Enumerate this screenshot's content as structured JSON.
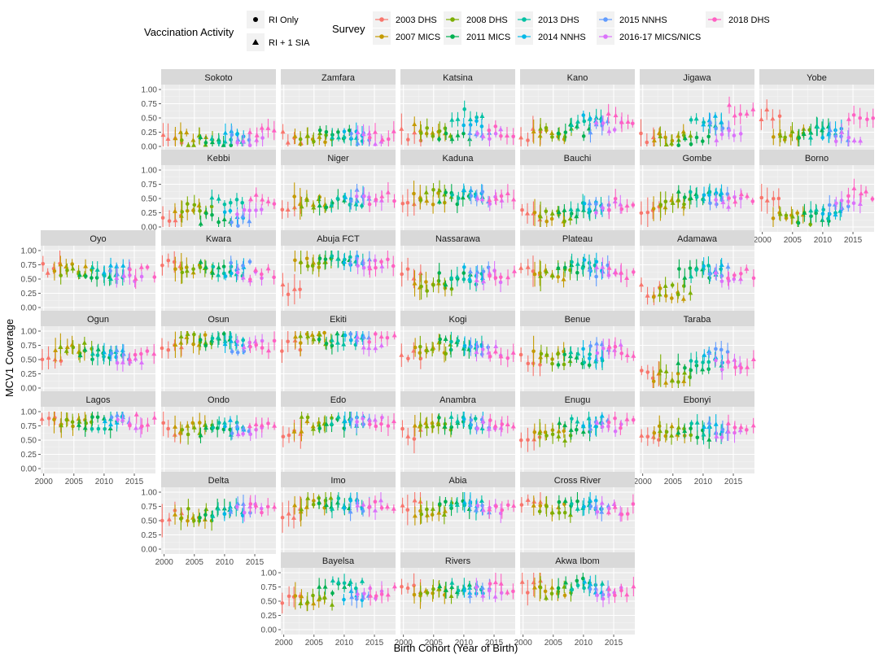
{
  "chart_data": {
    "type": "scatter",
    "subtype": "faceted point-range (map-layout small multiples)",
    "x_label": "Birth Cohort (Year of Birth)",
    "y_label": "MCV1 Coverage",
    "xlim": [
      1999.5,
      2018.5
    ],
    "ylim": [
      0,
      1
    ],
    "x_ticks": [
      2000,
      2005,
      2010,
      2015
    ],
    "y_ticks": [
      0,
      0.25,
      0.5,
      0.75,
      1
    ],
    "y_tick_labels": [
      "0.00",
      "0.25",
      "0.50",
      "0.75",
      "1.00"
    ],
    "legend": {
      "shape_title": "Vaccination Activity",
      "shape_items": [
        {
          "label": "RI Only",
          "shape": "circle"
        },
        {
          "label": "RI + 1 SIA",
          "shape": "triangle"
        }
      ],
      "color_title": "Survey",
      "color_items": [
        {
          "label": "2003 DHS",
          "color": "#F8766D"
        },
        {
          "label": "2007 MICS",
          "color": "#C49A00"
        },
        {
          "label": "2008 DHS",
          "color": "#7CAE00"
        },
        {
          "label": "2011 MICS",
          "color": "#00B050"
        },
        {
          "label": "2013 DHS",
          "color": "#00C1A3"
        },
        {
          "label": "2014 NNHS",
          "color": "#00B8E7"
        },
        {
          "label": "2015 NNHS",
          "color": "#619CFF"
        },
        {
          "label": "2016-17 MICS/NICS",
          "color": "#DB72FB"
        },
        {
          "label": "2018 DHS",
          "color": "#FF61C3"
        }
      ]
    },
    "surveys": [
      {
        "name": "2003 DHS",
        "years": [
          2000,
          2003
        ]
      },
      {
        "name": "2007 MICS",
        "years": [
          2002,
          2007
        ]
      },
      {
        "name": "2008 DHS",
        "years": [
          2003,
          2008
        ]
      },
      {
        "name": "2011 MICS",
        "years": [
          2006,
          2011
        ]
      },
      {
        "name": "2013 DHS",
        "years": [
          2008,
          2013
        ]
      },
      {
        "name": "2014 NNHS",
        "years": [
          2010,
          2013
        ]
      },
      {
        "name": "2015 NNHS",
        "years": [
          2011,
          2014
        ]
      },
      {
        "name": "2016-17 MICS/NICS",
        "years": [
          2012,
          2016
        ]
      },
      {
        "name": "2018 DHS",
        "years": [
          2014,
          2018
        ]
      }
    ],
    "states": [
      {
        "name": "Sokoto",
        "row": 0,
        "col": 1,
        "levels": [
          0.15,
          0.15,
          0.08,
          0.05,
          0.15,
          0.25,
          0.1,
          0.08,
          0.22
        ]
      },
      {
        "name": "Zamfara",
        "row": 0,
        "col": 2,
        "levels": [
          0.15,
          0.15,
          0.18,
          0.18,
          0.12,
          0.25,
          0.15,
          0.15,
          0.2
        ]
      },
      {
        "name": "Katsina",
        "row": 0,
        "col": 3,
        "levels": [
          0.2,
          0.3,
          0.25,
          0.2,
          0.55,
          0.45,
          0.2,
          0.2,
          0.25
        ]
      },
      {
        "name": "Kano",
        "row": 0,
        "col": 4,
        "levels": [
          0.2,
          0.2,
          0.22,
          0.28,
          0.45,
          0.45,
          0.35,
          0.35,
          0.5
        ]
      },
      {
        "name": "Jigawa",
        "row": 0,
        "col": 5,
        "levels": [
          0.15,
          0.15,
          0.12,
          0.1,
          0.45,
          0.45,
          0.3,
          0.2,
          0.65
        ]
      },
      {
        "name": "Yobe",
        "row": 0,
        "col": 6,
        "levels": [
          0.55,
          0.2,
          0.2,
          0.25,
          0.25,
          0.25,
          0.2,
          0.15,
          0.45
        ]
      },
      {
        "name": "Kebbi",
        "row": 1,
        "col": 1,
        "levels": [
          0.2,
          0.3,
          0.3,
          0.15,
          0.5,
          0.2,
          0.1,
          0.2,
          0.5
        ]
      },
      {
        "name": "Niger",
        "row": 1,
        "col": 2,
        "levels": [
          0.3,
          0.45,
          0.4,
          0.45,
          0.45,
          0.5,
          0.55,
          0.45,
          0.5
        ]
      },
      {
        "name": "Kaduna",
        "row": 1,
        "col": 3,
        "levels": [
          0.4,
          0.5,
          0.55,
          0.5,
          0.6,
          0.55,
          0.55,
          0.45,
          0.55
        ]
      },
      {
        "name": "Bauchi",
        "row": 1,
        "col": 4,
        "levels": [
          0.2,
          0.15,
          0.2,
          0.25,
          0.35,
          0.4,
          0.35,
          0.35,
          0.4
        ]
      },
      {
        "name": "Gombe",
        "row": 1,
        "col": 5,
        "levels": [
          0.35,
          0.4,
          0.4,
          0.55,
          0.55,
          0.55,
          0.5,
          0.45,
          0.55
        ]
      },
      {
        "name": "Borno",
        "row": 1,
        "col": 6,
        "levels": [
          0.55,
          0.2,
          0.15,
          0.15,
          0.25,
          0.3,
          0.3,
          0.5,
          0.6
        ]
      },
      {
        "name": "Oyo",
        "row": 2,
        "col": 0,
        "levels": [
          0.7,
          0.7,
          0.65,
          0.6,
          0.6,
          0.65,
          0.6,
          0.55,
          0.6
        ]
      },
      {
        "name": "Kwara",
        "row": 2,
        "col": 1,
        "levels": [
          0.8,
          0.7,
          0.6,
          0.7,
          0.65,
          0.6,
          0.7,
          0.55,
          0.6
        ]
      },
      {
        "name": "Abuja FCT",
        "row": 2,
        "col": 2,
        "levels": [
          0.3,
          0.75,
          0.8,
          0.8,
          0.85,
          0.85,
          0.8,
          0.75,
          0.75
        ]
      },
      {
        "name": "Nassarawa",
        "row": 2,
        "col": 3,
        "levels": [
          0.6,
          0.45,
          0.4,
          0.5,
          0.5,
          0.6,
          0.6,
          0.55,
          0.55
        ]
      },
      {
        "name": "Plateau",
        "row": 2,
        "col": 4,
        "levels": [
          0.6,
          0.55,
          0.6,
          0.65,
          0.7,
          0.75,
          0.65,
          0.6,
          0.6
        ]
      },
      {
        "name": "Adamawa",
        "row": 2,
        "col": 5,
        "levels": [
          0.3,
          0.25,
          0.3,
          0.6,
          0.65,
          0.7,
          0.65,
          0.5,
          0.6
        ]
      },
      {
        "name": "Ogun",
        "row": 3,
        "col": 0,
        "levels": [
          0.5,
          0.65,
          0.7,
          0.6,
          0.6,
          0.6,
          0.6,
          0.55,
          0.6
        ]
      },
      {
        "name": "Osun",
        "row": 3,
        "col": 1,
        "levels": [
          0.7,
          0.85,
          0.85,
          0.85,
          0.8,
          0.75,
          0.7,
          0.75,
          0.75
        ]
      },
      {
        "name": "Ekiti",
        "row": 3,
        "col": 2,
        "levels": [
          0.75,
          0.9,
          0.85,
          0.85,
          0.85,
          0.85,
          0.85,
          0.8,
          0.85
        ]
      },
      {
        "name": "Kogi",
        "row": 3,
        "col": 3,
        "levels": [
          0.6,
          0.7,
          0.7,
          0.75,
          0.75,
          0.75,
          0.7,
          0.65,
          0.6
        ]
      },
      {
        "name": "Benue",
        "row": 3,
        "col": 4,
        "levels": [
          0.5,
          0.55,
          0.5,
          0.5,
          0.55,
          0.6,
          0.7,
          0.7,
          0.65
        ]
      },
      {
        "name": "Taraba",
        "row": 3,
        "col": 5,
        "levels": [
          0.25,
          0.2,
          0.2,
          0.35,
          0.5,
          0.55,
          0.6,
          0.4,
          0.45
        ]
      },
      {
        "name": "Lagos",
        "row": 4,
        "col": 0,
        "levels": [
          0.8,
          0.85,
          0.85,
          0.8,
          0.8,
          0.85,
          0.85,
          0.8,
          0.85
        ]
      },
      {
        "name": "Ondo",
        "row": 4,
        "col": 1,
        "levels": [
          0.7,
          0.7,
          0.7,
          0.65,
          0.7,
          0.75,
          0.7,
          0.7,
          0.75
        ]
      },
      {
        "name": "Edo",
        "row": 4,
        "col": 2,
        "levels": [
          0.65,
          0.75,
          0.8,
          0.8,
          0.8,
          0.8,
          0.8,
          0.8,
          0.8
        ]
      },
      {
        "name": "Anambra",
        "row": 4,
        "col": 3,
        "levels": [
          0.6,
          0.75,
          0.75,
          0.8,
          0.8,
          0.8,
          0.8,
          0.75,
          0.8
        ]
      },
      {
        "name": "Enugu",
        "row": 4,
        "col": 4,
        "levels": [
          0.6,
          0.6,
          0.55,
          0.7,
          0.8,
          0.85,
          0.8,
          0.75,
          0.8
        ]
      },
      {
        "name": "Ebonyi",
        "row": 4,
        "col": 5,
        "levels": [
          0.5,
          0.65,
          0.65,
          0.6,
          0.7,
          0.7,
          0.7,
          0.65,
          0.7
        ]
      },
      {
        "name": "Delta",
        "row": 5,
        "col": 1,
        "levels": [
          0.6,
          0.5,
          0.6,
          0.65,
          0.65,
          0.65,
          0.7,
          0.7,
          0.7
        ]
      },
      {
        "name": "Imo",
        "row": 5,
        "col": 2,
        "levels": [
          0.65,
          0.75,
          0.8,
          0.75,
          0.8,
          0.8,
          0.75,
          0.75,
          0.75
        ]
      },
      {
        "name": "Abia",
        "row": 5,
        "col": 3,
        "levels": [
          0.75,
          0.65,
          0.7,
          0.75,
          0.75,
          0.75,
          0.75,
          0.7,
          0.75
        ]
      },
      {
        "name": "Cross River",
        "row": 5,
        "col": 4,
        "levels": [
          0.8,
          0.7,
          0.7,
          0.75,
          0.75,
          0.75,
          0.75,
          0.7,
          0.7
        ]
      },
      {
        "name": "Bayelsa",
        "row": 6,
        "col": 2,
        "levels": [
          0.5,
          0.55,
          0.5,
          0.7,
          0.75,
          0.6,
          0.6,
          0.65,
          0.7
        ]
      },
      {
        "name": "Rivers",
        "row": 6,
        "col": 3,
        "levels": [
          0.7,
          0.65,
          0.65,
          0.75,
          0.75,
          0.7,
          0.7,
          0.65,
          0.75
        ]
      },
      {
        "name": "Akwa Ibom",
        "row": 6,
        "col": 4,
        "levels": [
          0.75,
          0.65,
          0.65,
          0.8,
          0.75,
          0.75,
          0.7,
          0.65,
          0.7
        ]
      }
    ]
  }
}
